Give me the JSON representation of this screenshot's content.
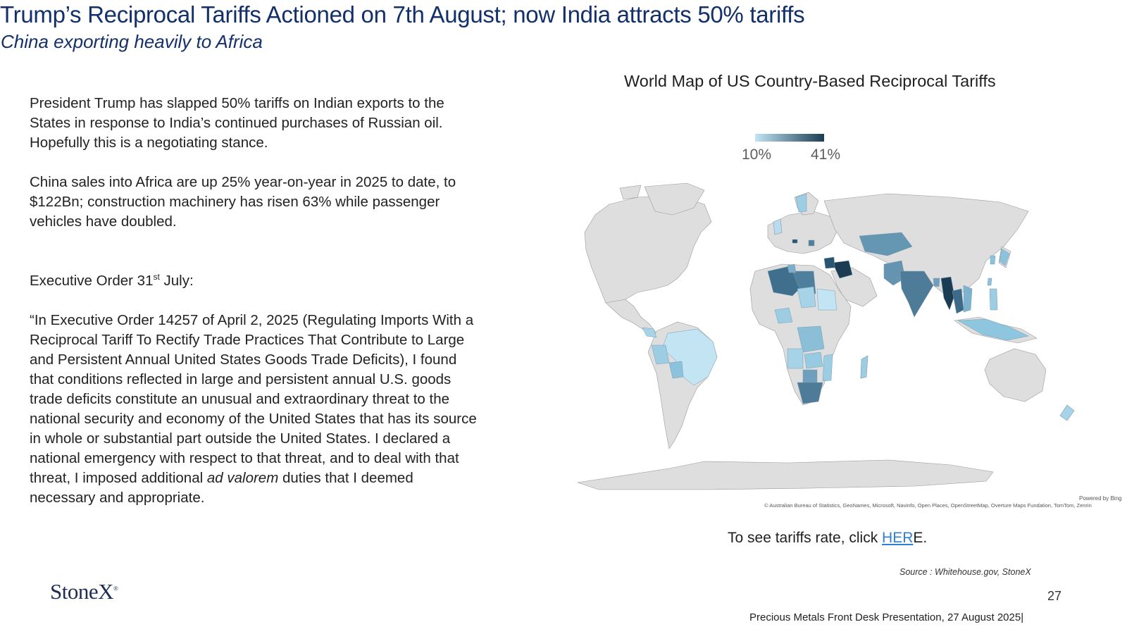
{
  "header": {
    "title": "Trump’s Reciprocal Tariffs Actioned on 7th August; now India attracts 50% tariffs",
    "subtitle": "China exporting heavily to Africa"
  },
  "body": {
    "para1": "President Trump has slapped 50% tariffs on Indian exports to the States in response to India’s continued purchases of Russian oil.  Hopefully this is a negotiating stance.",
    "para2": "China sales into Africa are up 25% year-on-year in 2025 to date, to $122Bn; construction machinery has risen 63% while passenger vehicles have doubled.",
    "exec_label_pre": "Executive Order 31",
    "exec_label_sup": "st",
    "exec_label_post": " July:",
    "quote_pre": "“In Executive Order 14257 of April 2, 2025 (Regulating Imports With a Reciprocal Tariff To Rectify Trade Practices That Contribute to Large and Persistent Annual United States Goods Trade Deficits), I found that conditions reflected in large and persistent annual U.S. goods trade deficits constitute an unusual and extraordinary threat to the national security and economy of the United States that has its source in whole or substantial part outside the United States.  I declared a national emergency with respect to that threat, and to deal with that threat, I imposed additional ",
    "quote_italic": "ad valorem",
    "quote_post": " duties that I deemed necessary and appropriate."
  },
  "map": {
    "title": "World Map of US Country-Based Reciprocal Tariffs",
    "legend_min": "10%",
    "legend_max": "41%",
    "colors": {
      "low": "#c2e4f3",
      "high": "#1b3c52",
      "no_data": "#dedede",
      "ocean": "#ffffff"
    },
    "powered_by": "Powered by Bing",
    "attribution": "© Australian Bureau of Statistics, GeoNames, Microsoft, Navinfo, Open Places, OpenStreetMap, Overture Maps Fundation, TomTom,  Zenrin"
  },
  "cta": {
    "prefix": "To see tariffs rate, click ",
    "link": "HER",
    "suffix": "E."
  },
  "source": "Source : Whitehouse.gov,  StoneX",
  "logo": {
    "text": "StoneX",
    "mark": "®"
  },
  "page_number": "27",
  "footer": "Precious Metals Front Desk Presentation, 27 August 2025|"
}
